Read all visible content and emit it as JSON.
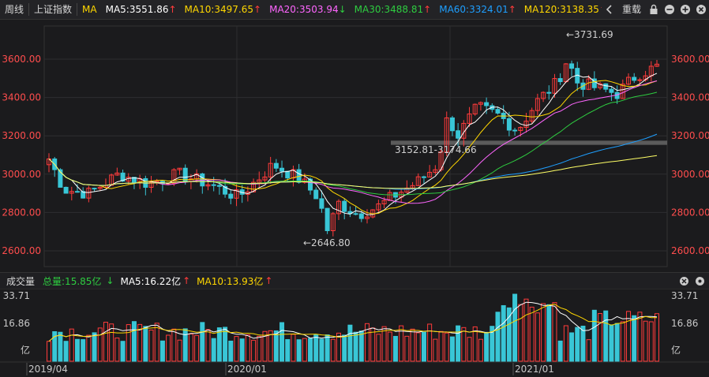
{
  "toolbar": {
    "period": "周线",
    "index_name": "上证指数",
    "indicator": "MA",
    "ma_items": [
      {
        "label": "MA5:3551.86",
        "color": "#ffffff",
        "trend": "up"
      },
      {
        "label": "MA10:3497.65",
        "color": "#ffd700",
        "trend": "up"
      },
      {
        "label": "MA20:3503.94",
        "color": "#ff66ff",
        "trend": "down"
      },
      {
        "label": "MA30:3488.81",
        "color": "#2ecc40",
        "trend": "up"
      },
      {
        "label": "MA60:3324.01",
        "color": "#1e9fff",
        "trend": "up"
      },
      {
        "label": "MA120:3138.35",
        "color": "#ffd700",
        "trend": "up"
      }
    ],
    "reload_label": "重载"
  },
  "price_axis": {
    "ticks": [
      "3600.00",
      "3400.00",
      "3200.00",
      "3000.00",
      "2800.00",
      "2600.00"
    ]
  },
  "annotations": {
    "high": "3731.69",
    "low": "2646.80",
    "gap": "3152.81-3174.66"
  },
  "volume_header": {
    "title": "成交量",
    "total": "总量:15.85亿",
    "ma5": "MA5:16.22亿",
    "ma10": "MA10:13.93亿"
  },
  "volume_axis": {
    "ticks": [
      "33.71",
      "16.86",
      "亿"
    ]
  },
  "date_axis": {
    "labels": [
      "2019/04",
      "2020/01",
      "2021/01"
    ]
  },
  "colors": {
    "up": "#ff3b3b",
    "down": "#39c6d6",
    "background": "#1b1b1d"
  }
}
